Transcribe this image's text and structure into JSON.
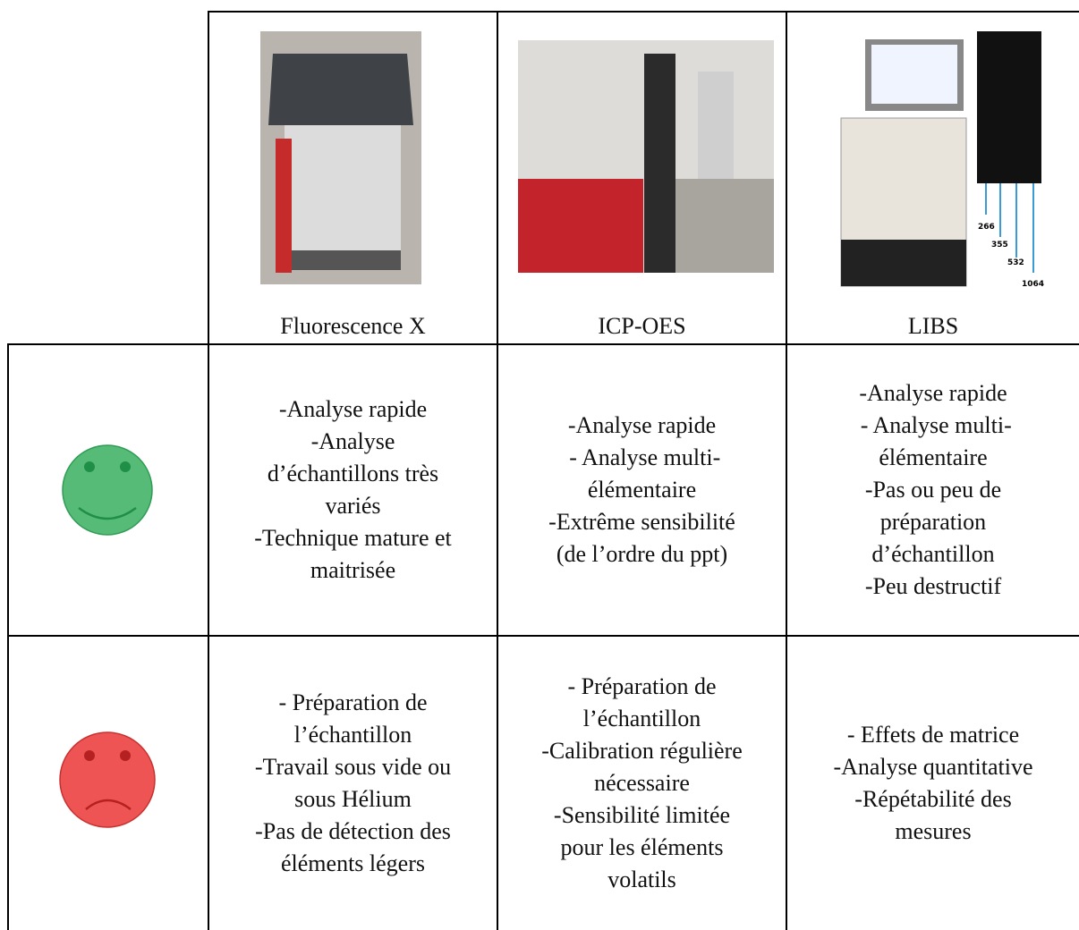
{
  "header": {
    "columns": [
      "Fluorescence X",
      "ICP-OES",
      "LIBS"
    ],
    "wavelengths": [
      "266",
      "355",
      "532",
      "1064"
    ]
  },
  "rows": [
    {
      "cells": [
        [
          "-Analyse rapide",
          "-Analyse",
          "d’échantillons très",
          "variés",
          "-Technique mature et",
          "maitrisée"
        ],
        [
          "-Analyse rapide",
          " - Analyse multi-",
          "élémentaire",
          "-Extrême sensibilité",
          "(de l’ordre du ppt)"
        ],
        [
          "-Analyse rapide",
          " - Analyse multi-",
          "élémentaire",
          "-Pas ou peu de",
          "préparation",
          "d’échantillon",
          "-Peu destructif"
        ]
      ]
    },
    {
      "cells": [
        [
          "- Préparation de",
          "l’échantillon",
          "-Travail sous vide ou",
          "sous Hélium",
          "-Pas de détection des",
          "éléments légers"
        ],
        [
          "- Préparation de",
          "l’échantillon",
          "-Calibration régulière",
          "nécessaire",
          "-Sensibilité limitée",
          "pour les éléments",
          "volatils"
        ],
        [
          "- Effets de matrice",
          "-Analyse quantitative",
          "-Répétabilité des",
          "mesures"
        ]
      ]
    }
  ]
}
